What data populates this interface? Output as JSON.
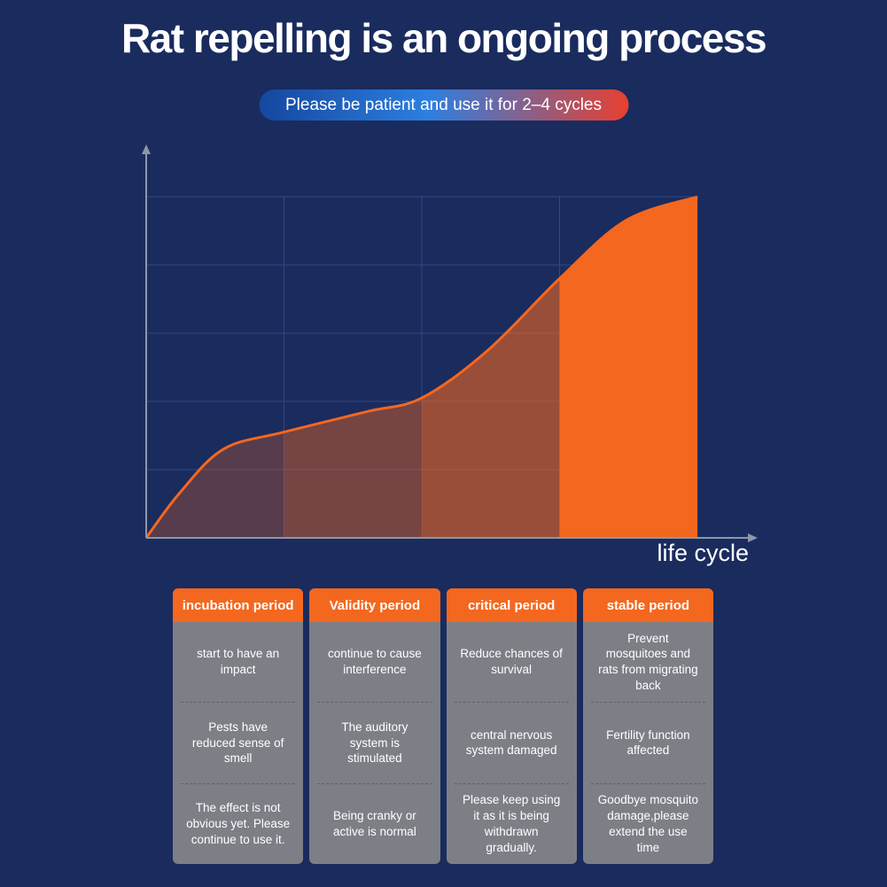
{
  "title": "Rat repelling is an ongoing process",
  "banner": {
    "text": "Please be patient and use it for 2–4 cycles"
  },
  "chart_data": {
    "type": "area",
    "title": "Rat repelling is an ongoing process",
    "xlabel": "life cycle",
    "ylabel": "",
    "grid": {
      "cols": 4,
      "rows": 5
    },
    "segments": [
      "incubation period",
      "Validity period",
      "critical period",
      "stable period"
    ],
    "band_opacities": [
      0.28,
      0.42,
      0.58,
      1
    ],
    "curve_color": "#f4671f",
    "grid_color": "#36477d",
    "axis_color": "#8e96a8",
    "points": [
      {
        "x": 0.0,
        "y": 0.0
      },
      {
        "x": 0.06,
        "y": 0.13
      },
      {
        "x": 0.14,
        "y": 0.26
      },
      {
        "x": 0.25,
        "y": 0.31
      },
      {
        "x": 0.4,
        "y": 0.37
      },
      {
        "x": 0.5,
        "y": 0.41
      },
      {
        "x": 0.62,
        "y": 0.55
      },
      {
        "x": 0.75,
        "y": 0.76
      },
      {
        "x": 0.87,
        "y": 0.93
      },
      {
        "x": 1.0,
        "y": 1.0
      }
    ],
    "x_axis_label": "life cycle",
    "legend": "none"
  },
  "axis_label": "life cycle",
  "periods": [
    {
      "title": "incubation period",
      "items": [
        "start to have an impact",
        "Pests have reduced sense of smell",
        "The effect is not obvious yet. Please continue to use it."
      ]
    },
    {
      "title": "Validity period",
      "items": [
        "continue to cause interference",
        "The auditory system is stimulated",
        "Being cranky or active is normal"
      ]
    },
    {
      "title": "critical period",
      "items": [
        "Reduce chances of survival",
        "central nervous system damaged",
        "Please keep using it as it is being withdrawn gradually."
      ]
    },
    {
      "title": "stable period",
      "items": [
        "Prevent mosquitoes and rats from migrating back",
        "Fertility function affected",
        "Goodbye mosquito damage,please extend the use time"
      ]
    }
  ],
  "colors": {
    "background": "#1a2b5e",
    "accent_orange": "#f4671f",
    "panel_gray": "#7d7f86",
    "banner_blue": "#2d7fe0",
    "banner_red": "#e8402f"
  }
}
